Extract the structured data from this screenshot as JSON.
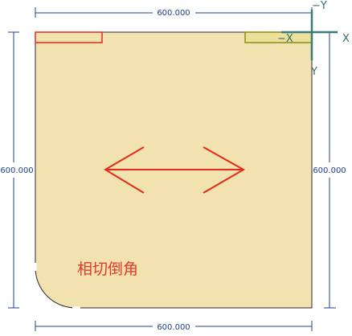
{
  "dimensions": {
    "top": "600.000",
    "bottom": "600.000",
    "left": "600.000",
    "right": "600.000"
  },
  "axes": {
    "neg_y": "−Y",
    "pos_x": "X",
    "neg_x": "−X",
    "pos_y": "Y"
  },
  "annotation": {
    "label": "相切倒角"
  },
  "colors": {
    "panel_fill": "#f1e2b0",
    "panel_stroke": "#2b2b2b",
    "dimension_line": "#1f3f8f",
    "arrow": "#e52a1c",
    "marker_red": "#e52a1c",
    "marker_olive": "#8f8a16",
    "axis_gizmo": "#3c7a7a"
  }
}
